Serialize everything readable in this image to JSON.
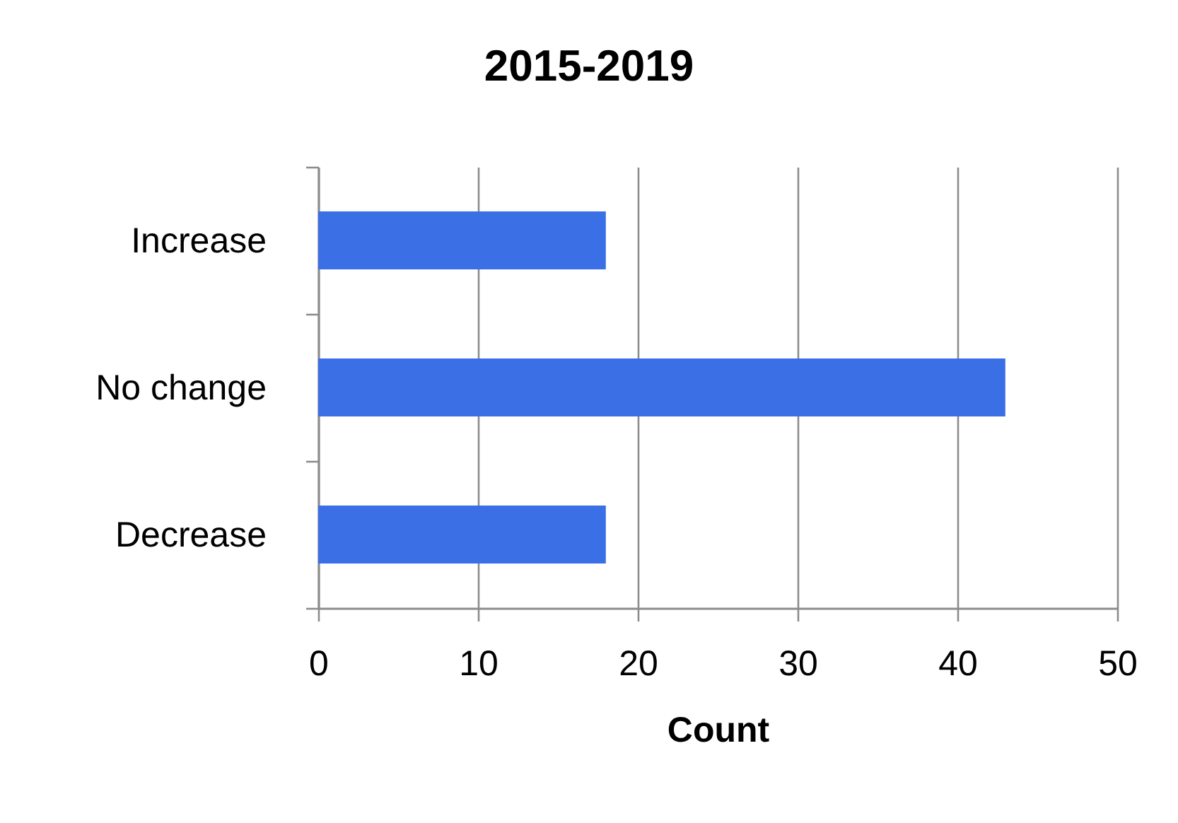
{
  "chart_data": {
    "type": "bar",
    "orientation": "horizontal",
    "title": "2015-2019",
    "xlabel": "Count",
    "categories": [
      "Increase",
      "No change",
      "Decrease"
    ],
    "values": [
      18,
      43,
      18
    ],
    "color": "#3b6fe6",
    "xlim": [
      0,
      50
    ],
    "xticks": [
      0,
      10,
      20,
      30,
      40,
      50
    ],
    "grid": "x"
  }
}
